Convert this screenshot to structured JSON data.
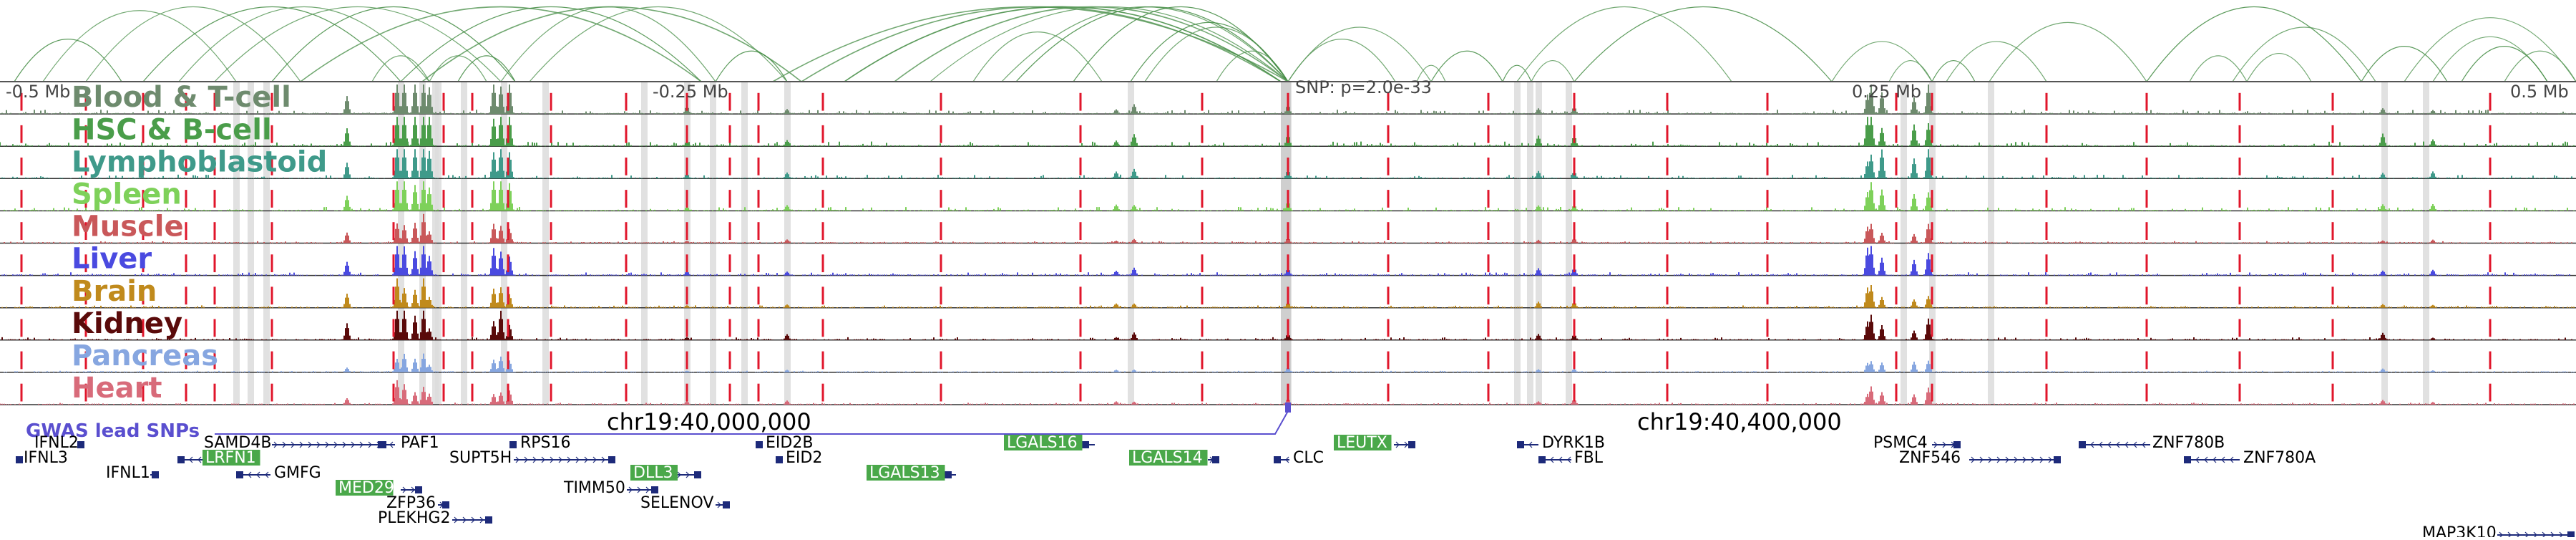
{
  "scale": {
    "left": "-0.5 Mb",
    "mid_left": "-0.25 Mb",
    "snp": "SNP: p=2.0e-33",
    "mid_right": "0.25 Mb",
    "right": "0.5 Mb"
  },
  "tracks": [
    {
      "name": "Blood & T-cell",
      "color": "#6e8b6e"
    },
    {
      "name": "HSC & B-cell",
      "color": "#4a9d4a"
    },
    {
      "name": "Lymphoblastoid",
      "color": "#3f9a8a"
    },
    {
      "name": "Spleen",
      "color": "#7ed15a"
    },
    {
      "name": "Muscle",
      "color": "#c9585a"
    },
    {
      "name": "Liver",
      "color": "#4a4ae0"
    },
    {
      "name": "Brain",
      "color": "#c08a1c"
    },
    {
      "name": "Kidney",
      "color": "#5a0a0a"
    },
    {
      "name": "Pancreas",
      "color": "#86a6e0"
    },
    {
      "name": "Heart",
      "color": "#d86b7a"
    }
  ],
  "coords": {
    "left": "chr19:40,000,000",
    "right": "chr19:40,400,000"
  },
  "gwas_label": "GWAS lead SNPs",
  "genes": [
    {
      "name": "IFNL2",
      "row": 0,
      "label_x": 48,
      "tick_from": 108,
      "tick_to": 118,
      "dir": "left",
      "hl": false
    },
    {
      "name": "IFNL3",
      "row": 1,
      "label_x": 33,
      "tick_from": 22,
      "tick_to": 28,
      "dir": "left",
      "hl": false
    },
    {
      "name": "IFNL1",
      "row": 2,
      "label_x": 148,
      "tick_from": 210,
      "tick_to": 222,
      "dir": "right",
      "hl": false
    },
    {
      "name": "SAMD4B",
      "row": 0,
      "label_x": 285,
      "tick_from": 380,
      "tick_to": 540,
      "dir": "right",
      "hl": false
    },
    {
      "name": "PAF1",
      "row": 0,
      "label_x": 560,
      "tick_from": 528,
      "tick_to": 552,
      "dir": "left",
      "hl": false
    },
    {
      "name": "LRFN1",
      "row": 1,
      "label_x": 287,
      "tick_from": 248,
      "tick_to": 284,
      "dir": "left",
      "hl": true
    },
    {
      "name": "GMFG",
      "row": 2,
      "label_x": 383,
      "tick_from": 330,
      "tick_to": 378,
      "dir": "left",
      "hl": false
    },
    {
      "name": "MED29",
      "row": 3,
      "label_x": 473,
      "tick_from": 560,
      "tick_to": 590,
      "dir": "right",
      "hl": true
    },
    {
      "name": "ZFP36",
      "row": 4,
      "label_x": 540,
      "tick_from": 612,
      "tick_to": 628,
      "dir": "right",
      "hl": false
    },
    {
      "name": "PLEKHG2",
      "row": 5,
      "label_x": 528,
      "tick_from": 632,
      "tick_to": 688,
      "dir": "right",
      "hl": false
    },
    {
      "name": "RPS16",
      "row": 0,
      "label_x": 727,
      "tick_from": 712,
      "tick_to": 722,
      "dir": "right",
      "hl": false
    },
    {
      "name": "SUPT5H",
      "row": 1,
      "label_x": 628,
      "tick_from": 718,
      "tick_to": 860,
      "dir": "right",
      "hl": false
    },
    {
      "name": "DLL3",
      "row": 2,
      "label_x": 885,
      "tick_from": 944,
      "tick_to": 980,
      "dir": "right",
      "hl": true
    },
    {
      "name": "TIMM50",
      "row": 3,
      "label_x": 788,
      "tick_from": 876,
      "tick_to": 920,
      "dir": "right",
      "hl": false
    },
    {
      "name": "SELENOV",
      "row": 4,
      "label_x": 895,
      "tick_from": 1000,
      "tick_to": 1020,
      "dir": "right",
      "hl": false
    },
    {
      "name": "EID2B",
      "row": 0,
      "label_x": 1070,
      "tick_from": 1058,
      "tick_to": 1066,
      "dir": "right",
      "hl": false
    },
    {
      "name": "EID2",
      "row": 1,
      "label_x": 1098,
      "tick_from": 1086,
      "tick_to": 1094,
      "dir": "right",
      "hl": false
    },
    {
      "name": "LGALS13",
      "row": 2,
      "label_x": 1215,
      "tick_from": 1320,
      "tick_to": 1336,
      "dir": "left",
      "hl": true
    },
    {
      "name": "LGALS16",
      "row": 0,
      "label_x": 1407,
      "tick_from": 1512,
      "tick_to": 1530,
      "dir": "left",
      "hl": true
    },
    {
      "name": "LGALS14",
      "row": 1,
      "label_x": 1582,
      "tick_from": 1688,
      "tick_to": 1704,
      "dir": "right",
      "hl": true
    },
    {
      "name": "CLC",
      "row": 1,
      "label_x": 1807,
      "tick_from": 1780,
      "tick_to": 1802,
      "dir": "left",
      "hl": false
    },
    {
      "name": "LEUTX",
      "row": 0,
      "label_x": 1868,
      "tick_from": 1948,
      "tick_to": 1978,
      "dir": "right",
      "hl": true
    },
    {
      "name": "DYRK1B",
      "row": 0,
      "label_x": 2155,
      "tick_from": 2120,
      "tick_to": 2150,
      "dir": "left",
      "hl": false
    },
    {
      "name": "FBL",
      "row": 1,
      "label_x": 2200,
      "tick_from": 2150,
      "tick_to": 2196,
      "dir": "left",
      "hl": false
    },
    {
      "name": "PSMC4",
      "row": 0,
      "label_x": 2618,
      "tick_from": 2700,
      "tick_to": 2740,
      "dir": "right",
      "hl": false
    },
    {
      "name": "ZNF546",
      "row": 1,
      "label_x": 2654,
      "tick_from": 2752,
      "tick_to": 2880,
      "dir": "right",
      "hl": false
    },
    {
      "name": "ZNF780B",
      "row": 0,
      "label_x": 3008,
      "tick_from": 2905,
      "tick_to": 3005,
      "dir": "left",
      "hl": false
    },
    {
      "name": "ZNF780A",
      "row": 1,
      "label_x": 3135,
      "tick_from": 3052,
      "tick_to": 3130,
      "dir": "left",
      "hl": false
    },
    {
      "name": "MAP3K10",
      "row": 6,
      "label_x": 3385,
      "tick_from": 3490,
      "tick_to": 3598,
      "dir": "right",
      "hl": false
    }
  ]
}
